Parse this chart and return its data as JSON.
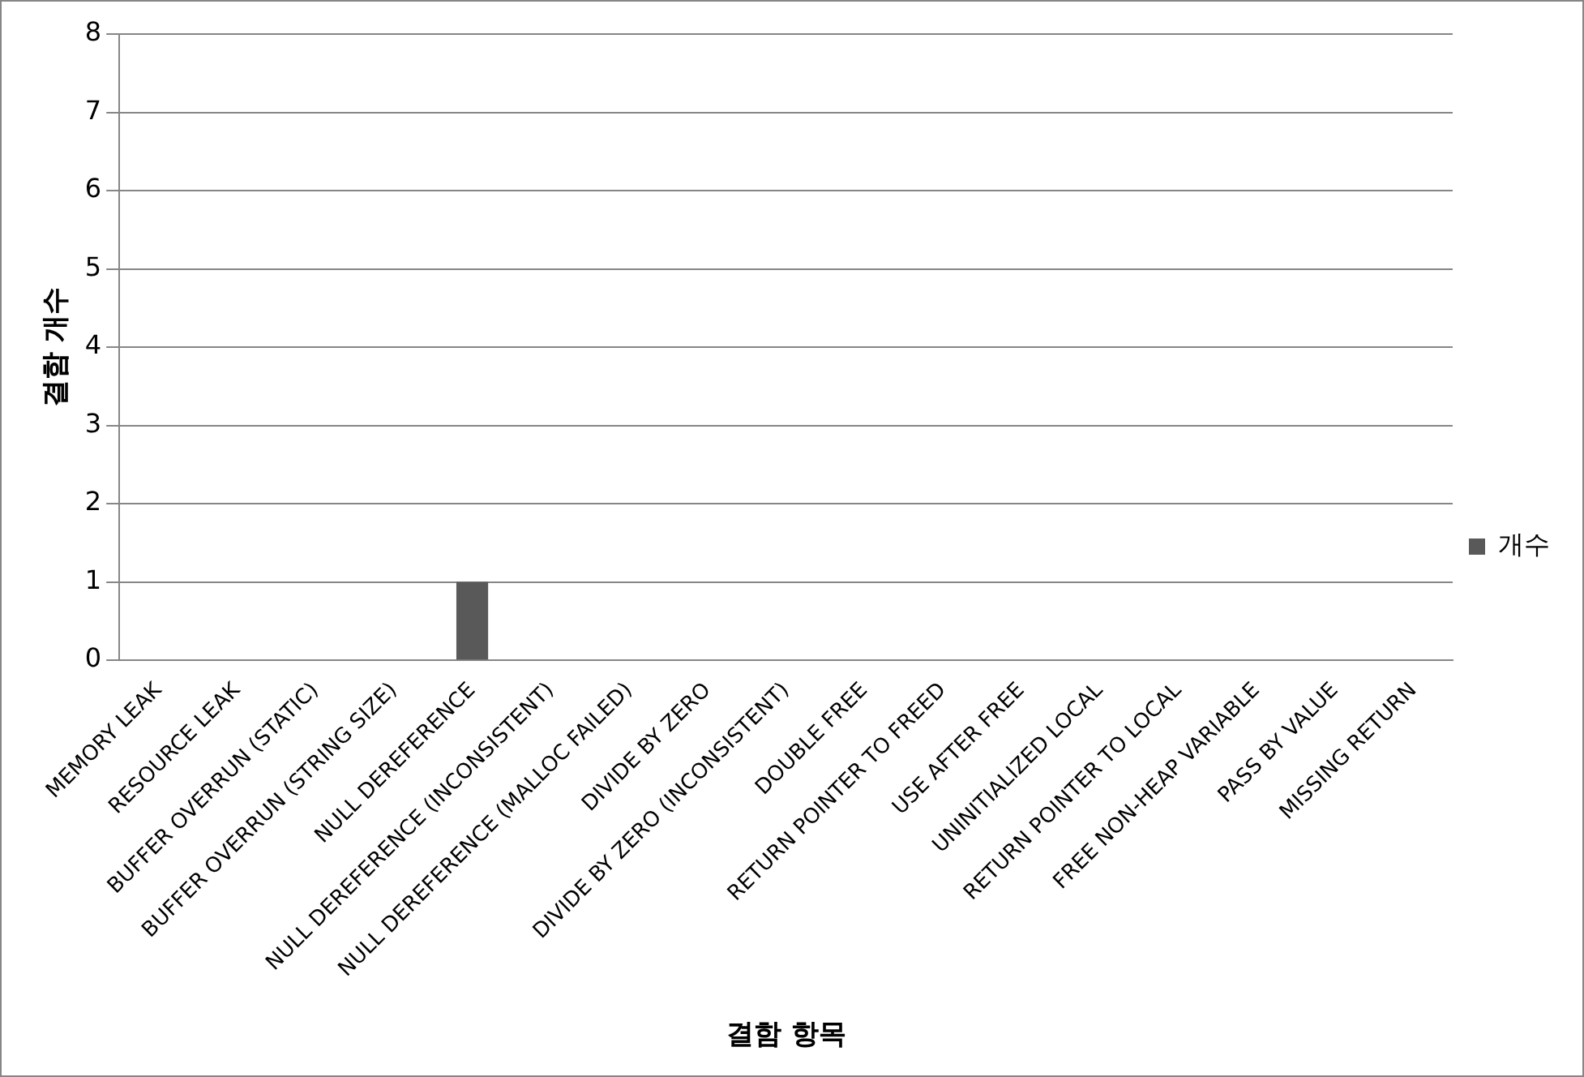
{
  "chart_data": {
    "type": "bar",
    "xlabel": "결함 항목",
    "ylabel": "결함 개수",
    "categories": [
      "MEMORY LEAK",
      "RESOURCE LEAK",
      "BUFFER OVERRUN (STATIC)",
      "BUFFER OVERRUN (STRING SIZE)",
      "NULL DEREFERENCE",
      "NULL DEREFERENCE (INCONSISTENT)",
      "NULL DEREFERENCE (MALLOC FAILED)",
      "DIVIDE BY ZERO",
      "DIVIDE BY ZERO (INCONSISTENT)",
      "DOUBLE FREE",
      "RETURN POINTER TO FREED",
      "USE AFTER FREE",
      "UNINITIALIZED LOCAL",
      "RETURN POINTER TO LOCAL",
      "FREE NON-HEAP VARIABLE",
      "PASS BY VALUE",
      "MISSING RETURN"
    ],
    "series": [
      {
        "name": "개수",
        "color": "#595959",
        "values": [
          0,
          0,
          0,
          0,
          1,
          0,
          0,
          0,
          0,
          0,
          0,
          0,
          0,
          0,
          0,
          0,
          0
        ]
      }
    ],
    "ylim": [
      0,
      8
    ],
    "yticks": [
      0,
      1,
      2,
      3,
      4,
      5,
      6,
      7,
      8
    ],
    "grid": "y",
    "legend": "right"
  }
}
